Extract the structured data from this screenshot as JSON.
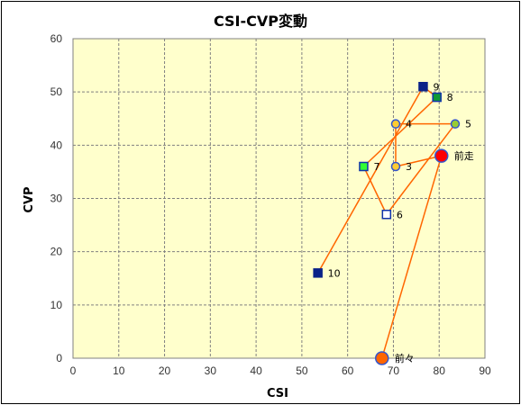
{
  "chart_data": {
    "type": "scatter",
    "title": "CSI-CVP変動",
    "xlabel": "CSI",
    "ylabel": "CVP",
    "xlim": [
      0,
      90
    ],
    "ylim": [
      0,
      60
    ],
    "x_ticks": [
      0,
      10,
      20,
      30,
      40,
      50,
      60,
      70,
      80,
      90
    ],
    "y_ticks": [
      0,
      10,
      20,
      30,
      40,
      50,
      60
    ],
    "grid": true,
    "plot_background": "#ffffcc",
    "line_color": "#ff6600",
    "points": [
      {
        "label": "前々",
        "x": 67.5,
        "y": 0,
        "marker": "circle-large",
        "fill": "#ff6600",
        "stroke": "#3355cc"
      },
      {
        "label": "前走",
        "x": 80.5,
        "y": 38,
        "marker": "circle-large",
        "fill": "#ff0000",
        "stroke": "#3355cc"
      },
      {
        "label": "3",
        "x": 70.5,
        "y": 36,
        "marker": "circle",
        "fill": "#ffcc33",
        "stroke": "#3355cc"
      },
      {
        "label": "4",
        "x": 70.5,
        "y": 44,
        "marker": "circle",
        "fill": "#ffcc33",
        "stroke": "#3355cc"
      },
      {
        "label": "5",
        "x": 83.5,
        "y": 44,
        "marker": "circle",
        "fill": "#99cc33",
        "stroke": "#3355cc"
      },
      {
        "label": "6",
        "x": 68.5,
        "y": 27,
        "marker": "square",
        "fill": "#ffffff",
        "stroke": "#1133aa"
      },
      {
        "label": "7",
        "x": 63.5,
        "y": 36,
        "marker": "square",
        "fill": "#33ff33",
        "stroke": "#1133aa"
      },
      {
        "label": "8",
        "x": 79.5,
        "y": 49,
        "marker": "square",
        "fill": "#119933",
        "stroke": "#1133aa"
      },
      {
        "label": "9",
        "x": 76.5,
        "y": 51,
        "marker": "square",
        "fill": "#0a2288",
        "stroke": "#0a2288"
      },
      {
        "label": "10",
        "x": 53.5,
        "y": 16,
        "marker": "square",
        "fill": "#0a2288",
        "stroke": "#0a2288"
      }
    ],
    "path_order": [
      "前々",
      "前走",
      "3",
      "4",
      "5",
      "6",
      "7",
      "8",
      "9",
      "10"
    ]
  }
}
